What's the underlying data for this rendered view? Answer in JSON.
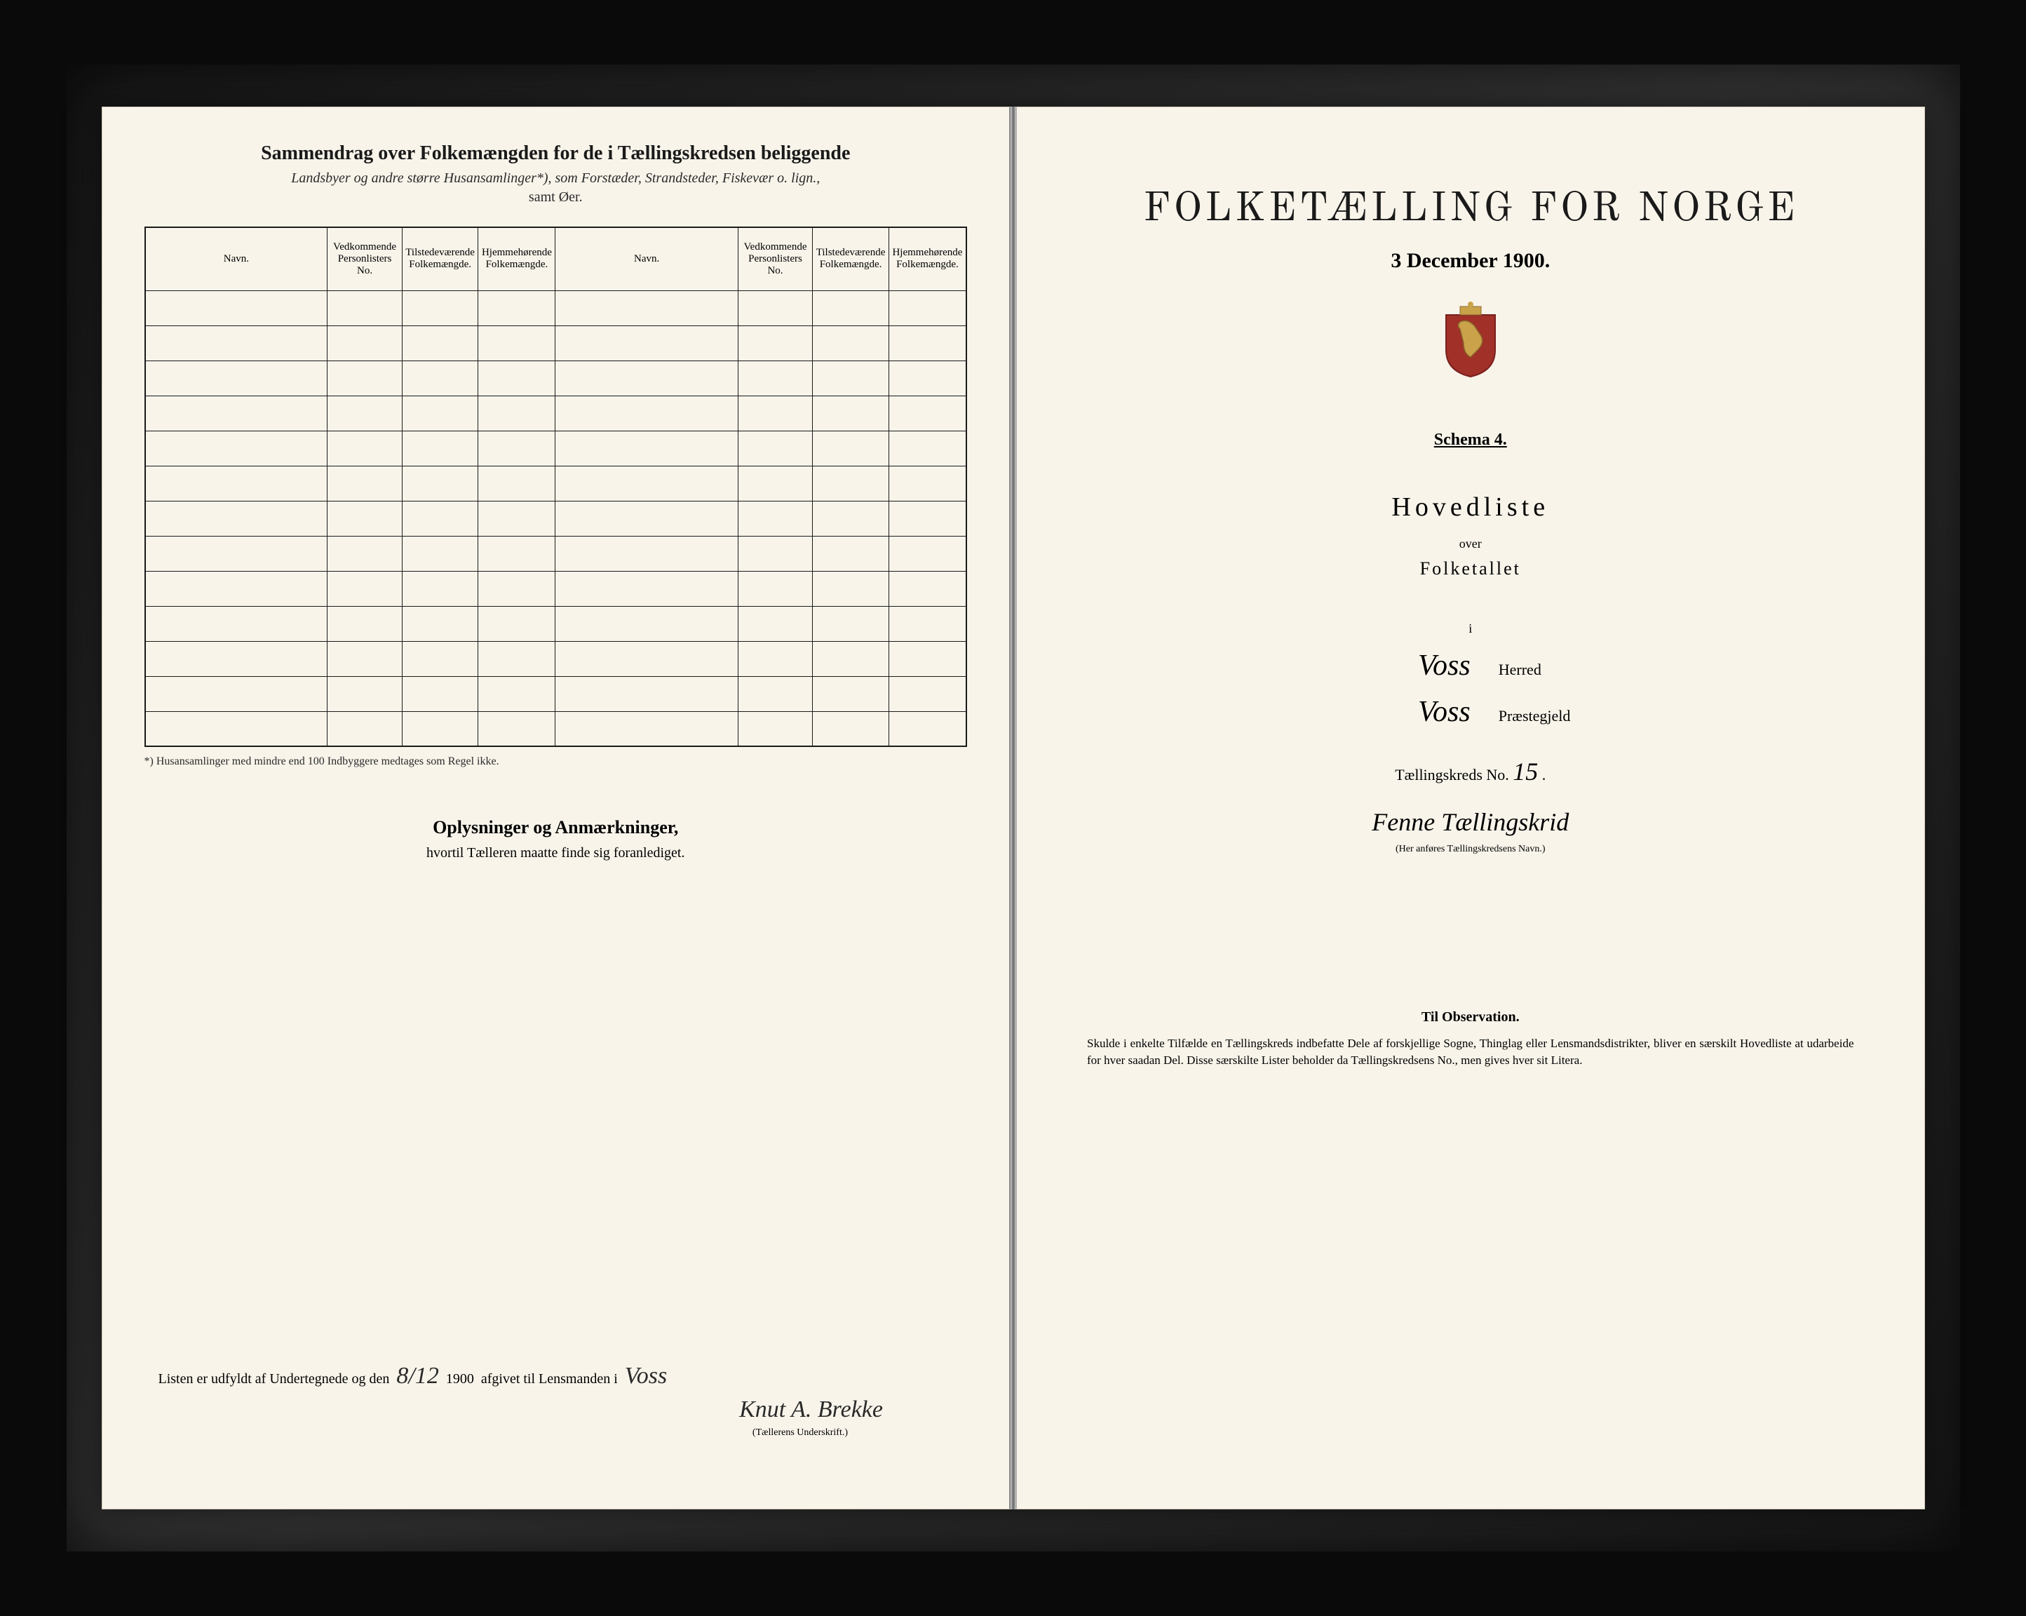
{
  "colors": {
    "paper": "#f8f4ea",
    "ink": "#1a1a1a",
    "frame": "#0a0a0a",
    "border": "#1a1a1a",
    "crest_gold": "#c9a24a",
    "crest_red": "#a03028"
  },
  "left": {
    "title": "Sammendrag over Folkemængden for de i Tællingskredsen beliggende",
    "subtitle": "Landsbyer og andre større Husansamlinger*), som Forstæder, Strandsteder, Fiskevær o. lign.,",
    "subtitle2": "samt Øer.",
    "table": {
      "columns": [
        "Navn.",
        "Vedkommende Personlisters No.",
        "Tilstedeværende Folkemængde.",
        "Hjemmehørende Folkemængde.",
        "Navn.",
        "Vedkommende Personlisters No.",
        "Tilstedeværende Folkemængde.",
        "Hjemmehørende Folkemængde."
      ],
      "empty_rows": 13
    },
    "footnote": "*) Husansamlinger med mindre end 100 Indbyggere medtages som Regel ikke.",
    "remarks_title": "Oplysninger og Anmærkninger,",
    "remarks_sub": "hvortil Tælleren maatte finde sig foranlediget.",
    "signature": {
      "prefix": "Listen er udfyldt af Undertegnede og den",
      "date_frac": "8/12",
      "year": "1900",
      "middle": "afgivet til Lensmanden i",
      "place": "Voss",
      "name": "Knut A. Brekke",
      "caption": "(Tællerens Underskrift.)"
    }
  },
  "right": {
    "title": "FOLKETÆLLING FOR NORGE",
    "date": "3 December 1900.",
    "schema": "Schema 4.",
    "hovedliste": "Hovedliste",
    "over": "over",
    "folketallet": "Folketallet",
    "i": "i",
    "herred_value": "Voss",
    "herred_label": "Herred",
    "praestegjeld_value": "Voss",
    "praestegjeld_label": "Præstegjeld",
    "kreds_label": "Tællingskreds No.",
    "kreds_no": "15",
    "kreds_name": "Fenne Tællingskrid",
    "kreds_caption": "(Her anføres Tællingskredsens Navn.)",
    "observation_title": "Til Observation.",
    "observation_text": "Skulde i enkelte Tilfælde en Tællingskreds indbefatte Dele af forskjellige Sogne, Thinglag eller Lensmandsdistrikter, bliver en særskilt Hovedliste at udarbeide for hver saadan Del. Disse særskilte Lister beholder da Tællingskredsens No., men gives hver sit Litera."
  }
}
